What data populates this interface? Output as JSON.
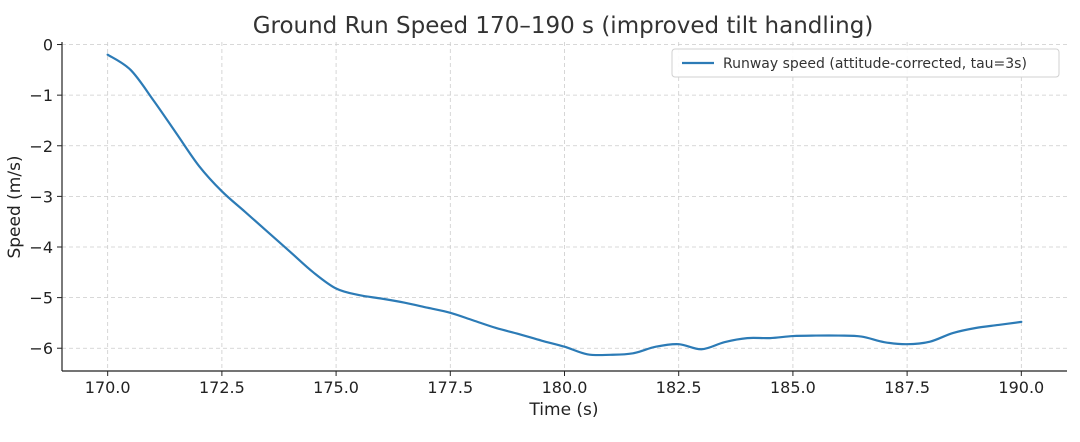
{
  "chart_data": {
    "type": "line",
    "title": "Ground Run Speed 170–190 s (improved tilt handling)",
    "xlabel": "Time (s)",
    "ylabel": "Speed (m/s)",
    "xlim": [
      169.0,
      191.0
    ],
    "ylim": [
      -6.45,
      0.05
    ],
    "x_ticks": [
      170.0,
      172.5,
      175.0,
      177.5,
      180.0,
      182.5,
      185.0,
      187.5,
      190.0
    ],
    "x_tick_labels": [
      "170.0",
      "172.5",
      "175.0",
      "177.5",
      "180.0",
      "182.5",
      "185.0",
      "187.5",
      "190.0"
    ],
    "y_ticks": [
      0,
      -1,
      -2,
      -3,
      -4,
      -5,
      -6
    ],
    "y_tick_labels": [
      "0",
      "−1",
      "−2",
      "−3",
      "−4",
      "−5",
      "−6"
    ],
    "grid": true,
    "legend_position": "top-right",
    "series": [
      {
        "name": "Runway speed (attitude-corrected, tau=3s)",
        "color": "#2c7bb6",
        "x": [
          170.0,
          170.5,
          171.0,
          171.5,
          172.0,
          172.5,
          173.0,
          173.5,
          174.0,
          174.5,
          175.0,
          175.5,
          176.0,
          176.5,
          177.0,
          177.5,
          178.0,
          178.5,
          179.0,
          179.5,
          180.0,
          180.5,
          181.0,
          181.5,
          182.0,
          182.5,
          183.0,
          183.5,
          184.0,
          184.5,
          185.0,
          185.5,
          186.0,
          186.5,
          187.0,
          187.5,
          188.0,
          188.5,
          189.0,
          189.5,
          190.0
        ],
        "y": [
          -0.2,
          -0.5,
          -1.1,
          -1.75,
          -2.4,
          -2.9,
          -3.3,
          -3.7,
          -4.1,
          -4.5,
          -4.82,
          -4.95,
          -5.02,
          -5.1,
          -5.2,
          -5.3,
          -5.45,
          -5.6,
          -5.72,
          -5.85,
          -5.97,
          -6.12,
          -6.13,
          -6.1,
          -5.97,
          -5.92,
          -6.02,
          -5.88,
          -5.8,
          -5.8,
          -5.76,
          -5.75,
          -5.75,
          -5.77,
          -5.88,
          -5.92,
          -5.87,
          -5.7,
          -5.6,
          -5.54,
          -5.48
        ]
      }
    ]
  }
}
